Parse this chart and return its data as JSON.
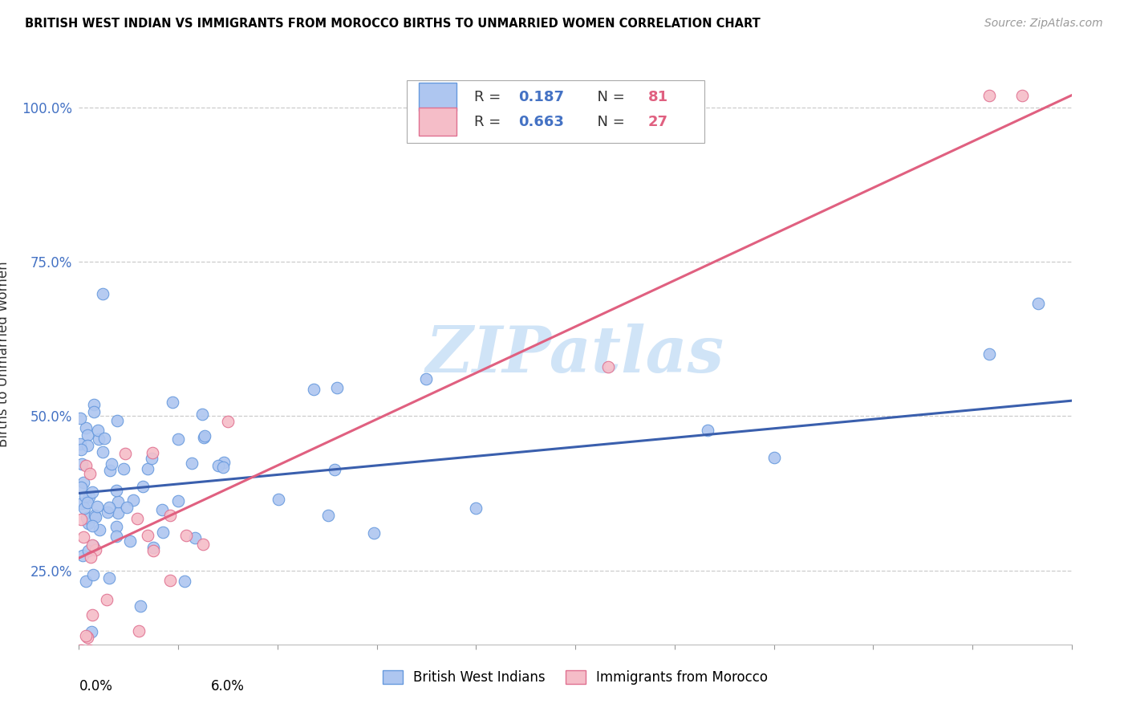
{
  "title": "BRITISH WEST INDIAN VS IMMIGRANTS FROM MOROCCO BIRTHS TO UNMARRIED WOMEN CORRELATION CHART",
  "source": "Source: ZipAtlas.com",
  "ylabel": "Births to Unmarried Women",
  "yticks": [
    0.25,
    0.5,
    0.75,
    1.0
  ],
  "ytick_labels": [
    "25.0%",
    "50.0%",
    "75.0%",
    "100.0%"
  ],
  "xlim": [
    0.0,
    6.0
  ],
  "ylim": [
    0.13,
    1.07
  ],
  "blue_color": "#aec6f0",
  "blue_edge_color": "#6699dd",
  "blue_line_color": "#3a5fad",
  "pink_color": "#f5bdc8",
  "pink_edge_color": "#e07090",
  "pink_line_color": "#e06080",
  "watermark_color": "#d0e4f7",
  "background_color": "#ffffff",
  "grid_color": "#cccccc",
  "blue_trend_x": [
    0.0,
    6.0
  ],
  "blue_trend_y": [
    0.375,
    0.525
  ],
  "pink_trend_x": [
    0.0,
    6.0
  ],
  "pink_trend_y": [
    0.27,
    1.02
  ],
  "legend_blue_r": "0.187",
  "legend_blue_n": "81",
  "legend_pink_r": "0.663",
  "legend_pink_n": "27",
  "label_blue": "British West Indians",
  "label_pink": "Immigrants from Morocco"
}
